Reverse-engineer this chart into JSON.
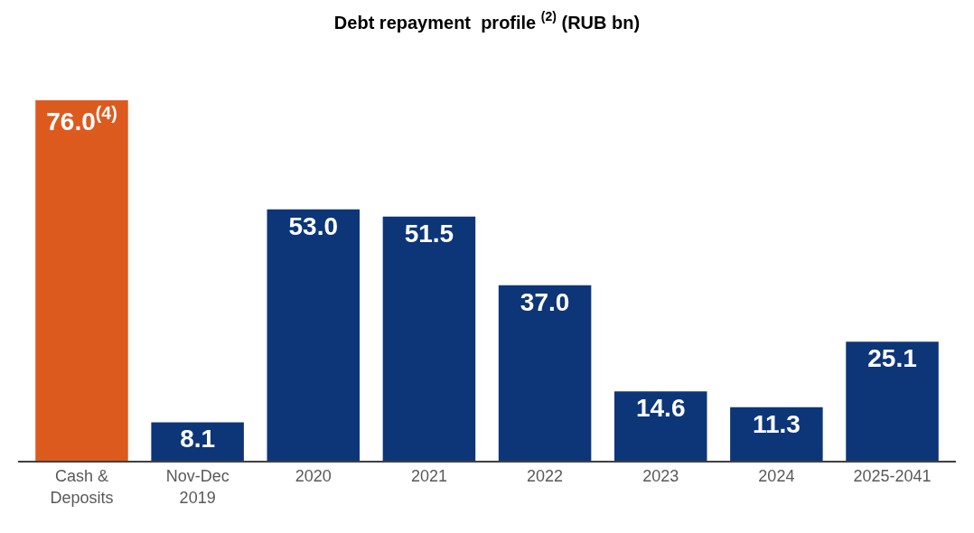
{
  "chart_data": {
    "type": "bar",
    "title": "Debt repayment  profile $^{(2)}$ (RUB bn)",
    "categories": [
      "Cash &\nDeposits",
      "Nov-Dec\n2019",
      "2020",
      "2021",
      "2022",
      "2023",
      "2024",
      "2025-2041"
    ],
    "values": [
      76.0,
      8.1,
      53.0,
      51.5,
      37.0,
      14.6,
      11.3,
      25.1
    ],
    "colors": [
      "#dd5a1f",
      "#0d3679",
      "#0d3679",
      "#0d3679",
      "#0d3679",
      "#0d3679",
      "#0d3679",
      "#0d3679"
    ],
    "value_labels": [
      "76.0$^{(4)}$",
      "8.1",
      "53.0",
      "51.5",
      "37.0",
      "14.6",
      "11.3",
      "25.1"
    ]
  }
}
